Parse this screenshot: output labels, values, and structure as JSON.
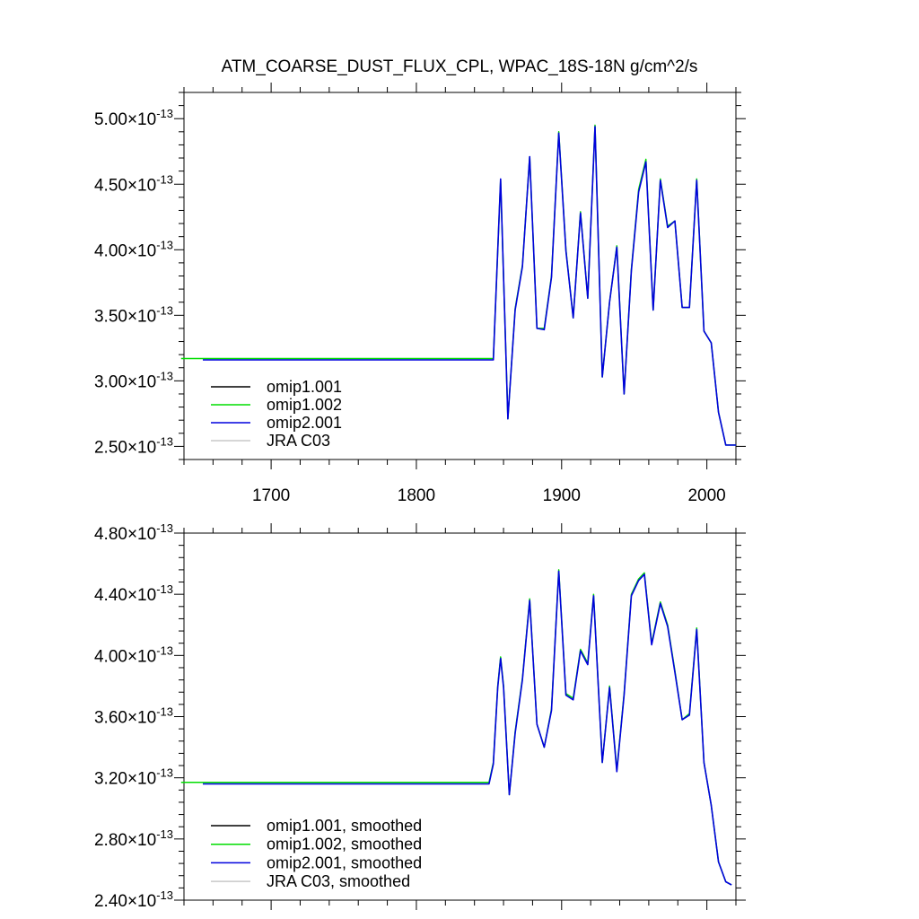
{
  "figure": {
    "title": "ATM_COARSE_DUST_FLUX_CPL, WPAC_18S-18N",
    "units": "g/cm^2/s"
  },
  "chart_data": [
    {
      "type": "line",
      "title": "ATM_COARSE_DUST_FLUX_CPL, WPAC_18S-18N",
      "units": "g/cm^2/s",
      "xlabel": "",
      "ylabel": "",
      "xlim": [
        1640,
        2020
      ],
      "ylim": [
        2.4,
        5.2
      ],
      "exponent": -13,
      "xticks": [
        1700,
        1800,
        1900,
        2000
      ],
      "xtick_labels": [
        "1700",
        "1800",
        "1900",
        "2000"
      ],
      "yticks": [
        2.5,
        3.0,
        3.5,
        4.0,
        4.5,
        5.0
      ],
      "ytick_mantissas": [
        "2.50",
        "3.00",
        "3.50",
        "4.00",
        "4.50",
        "5.00"
      ],
      "legend_placement": "bottom-left",
      "grid": false,
      "series": [
        {
          "name": "omip1.001",
          "color": "#000000",
          "x": [],
          "y": []
        },
        {
          "name": "omip1.002",
          "color": "#00dd00",
          "x": [
            1638,
            1853,
            1858,
            1863,
            1868,
            1873,
            1878,
            1883,
            1888,
            1893,
            1898,
            1903,
            1908,
            1913,
            1918,
            1923,
            1928,
            1933,
            1938,
            1943,
            1948,
            1953,
            1958,
            1963,
            1968,
            1973,
            1978,
            1983,
            1988,
            1993,
            1998,
            2003,
            2008,
            2013,
            2020
          ],
          "y": [
            3.17,
            3.17,
            4.53,
            2.71,
            3.55,
            3.88,
            4.71,
            3.4,
            3.4,
            3.8,
            4.9,
            4.0,
            3.48,
            4.29,
            3.63,
            4.95,
            3.03,
            3.6,
            4.03,
            2.9,
            3.85,
            4.46,
            4.69,
            3.54,
            4.54,
            4.18,
            4.22,
            3.56,
            3.56,
            4.54,
            3.38,
            3.29,
            2.76,
            2.51,
            2.51
          ]
        },
        {
          "name": "omip2.001",
          "color": "#0000dd",
          "x": [
            1653,
            1853,
            1858,
            1863,
            1868,
            1873,
            1878,
            1883,
            1888,
            1893,
            1898,
            1903,
            1908,
            1913,
            1918,
            1923,
            1928,
            1933,
            1938,
            1943,
            1948,
            1953,
            1958,
            1963,
            1968,
            1973,
            1978,
            1983,
            1988,
            1993,
            1998,
            2003,
            2008,
            2013,
            2020
          ],
          "y": [
            3.16,
            3.16,
            4.54,
            2.71,
            3.54,
            3.87,
            4.71,
            3.4,
            3.39,
            3.79,
            4.89,
            3.99,
            3.48,
            4.28,
            3.63,
            4.94,
            3.03,
            3.6,
            4.02,
            2.9,
            3.84,
            4.44,
            4.67,
            3.54,
            4.53,
            4.17,
            4.22,
            3.56,
            3.56,
            4.53,
            3.38,
            3.29,
            2.76,
            2.51,
            2.51
          ]
        },
        {
          "name": "JRA C03",
          "color": "#c8c8c8",
          "x": [],
          "y": []
        }
      ]
    },
    {
      "type": "line",
      "title": "",
      "xlabel": "",
      "ylabel": "",
      "xlim": [
        1640,
        2020
      ],
      "ylim": [
        2.4,
        4.8
      ],
      "exponent": -13,
      "xticks": [
        1700,
        1800,
        1900,
        2000
      ],
      "xtick_labels": [],
      "yticks": [
        2.4,
        2.8,
        3.2,
        3.6,
        4.0,
        4.4,
        4.8
      ],
      "ytick_mantissas": [
        "2.40",
        "2.80",
        "3.20",
        "3.60",
        "4.00",
        "4.40",
        "4.80"
      ],
      "legend_placement": "bottom-left",
      "grid": false,
      "series": [
        {
          "name": "omip1.001, smoothed",
          "color": "#000000",
          "x": [],
          "y": []
        },
        {
          "name": "omip1.002, smoothed",
          "color": "#00dd00",
          "x": [
            1638,
            1850,
            1853,
            1856,
            1858,
            1860,
            1864,
            1868,
            1873,
            1878,
            1883,
            1888,
            1893,
            1898,
            1903,
            1908,
            1913,
            1918,
            1922,
            1928,
            1933,
            1938,
            1943,
            1948,
            1953,
            1957,
            1962,
            1968,
            1973,
            1978,
            1983,
            1988,
            1993,
            1998,
            2003,
            2008,
            2013,
            2017
          ],
          "y": [
            3.17,
            3.17,
            3.3,
            3.8,
            3.99,
            3.8,
            3.09,
            3.5,
            3.85,
            4.37,
            3.55,
            3.4,
            3.65,
            4.56,
            3.75,
            3.72,
            4.04,
            3.95,
            4.4,
            3.3,
            3.8,
            3.25,
            3.75,
            4.4,
            4.5,
            4.54,
            4.08,
            4.35,
            4.2,
            3.9,
            3.58,
            3.62,
            4.18,
            3.3,
            3.02,
            2.65,
            2.52,
            2.5
          ]
        },
        {
          "name": "omip2.001, smoothed",
          "color": "#0000dd",
          "x": [
            1653,
            1850,
            1853,
            1856,
            1858,
            1860,
            1864,
            1868,
            1873,
            1878,
            1883,
            1888,
            1893,
            1898,
            1903,
            1908,
            1913,
            1918,
            1922,
            1928,
            1933,
            1938,
            1943,
            1948,
            1953,
            1957,
            1962,
            1968,
            1973,
            1978,
            1983,
            1988,
            1993,
            1998,
            2003,
            2008,
            2013,
            2017
          ],
          "y": [
            3.16,
            3.16,
            3.29,
            3.79,
            3.98,
            3.79,
            3.09,
            3.49,
            3.84,
            4.36,
            3.55,
            3.4,
            3.64,
            4.55,
            3.74,
            3.71,
            4.03,
            3.94,
            4.39,
            3.3,
            3.79,
            3.24,
            3.74,
            4.39,
            4.49,
            4.53,
            4.07,
            4.34,
            4.19,
            3.89,
            3.58,
            3.61,
            4.17,
            3.3,
            3.02,
            2.65,
            2.52,
            2.5
          ]
        },
        {
          "name": "JRA C03, smoothed",
          "color": "#c8c8c8",
          "x": [],
          "y": []
        }
      ]
    }
  ]
}
